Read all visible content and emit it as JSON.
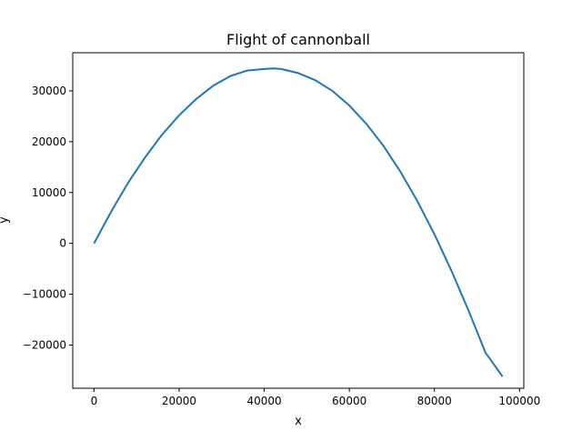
{
  "chart_data": {
    "type": "line",
    "title": "Flight of cannonball",
    "xlabel": "x",
    "ylabel": "y",
    "xlim": [
      -5000,
      101000
    ],
    "ylim": [
      -28500,
      37500
    ],
    "xticks": [
      0,
      20000,
      40000,
      60000,
      80000,
      100000
    ],
    "xtick_labels": [
      "0",
      "20000",
      "40000",
      "60000",
      "80000",
      "100000"
    ],
    "yticks": [
      -20000,
      -10000,
      0,
      10000,
      20000,
      30000
    ],
    "ytick_labels": [
      "−20000",
      "−10000",
      "0",
      "10000",
      "20000",
      "30000"
    ],
    "grid": false,
    "legend": "none",
    "line_color": "#1f77b4",
    "series": [
      {
        "x": [
          0,
          4000,
          8000,
          12000,
          16000,
          20000,
          24000,
          28000,
          32000,
          36000,
          40000,
          42300,
          44000,
          48000,
          52000,
          56000,
          60000,
          64000,
          68000,
          72000,
          76000,
          80000,
          84000,
          88000,
          92000,
          96000
        ],
        "y": [
          0,
          6200,
          11900,
          16900,
          21400,
          25200,
          28400,
          31000,
          32900,
          34000,
          34300,
          34400,
          34300,
          33500,
          32100,
          30000,
          27100,
          23500,
          19200,
          14100,
          8300,
          1800,
          -5400,
          -13200,
          -21500,
          -26200
        ]
      }
    ]
  }
}
